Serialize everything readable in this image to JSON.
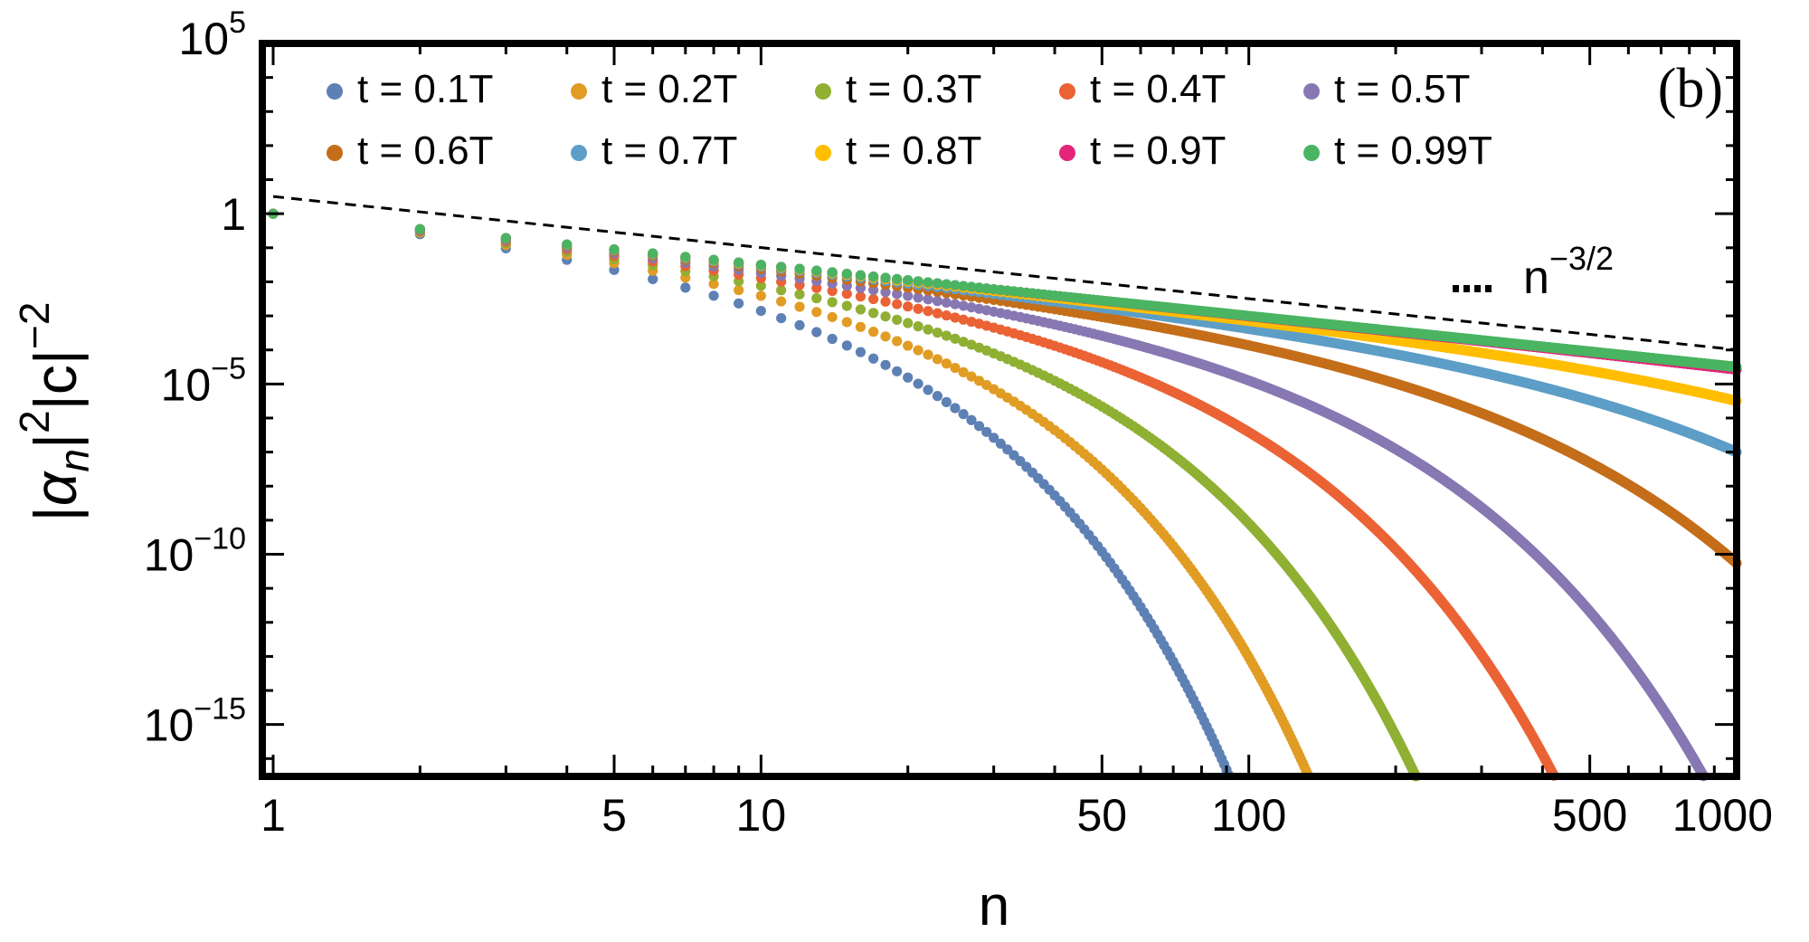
{
  "chart_data": {
    "type": "scatter",
    "title": "",
    "panel_label": "(b)",
    "xlabel": "n",
    "ylabel": "|αn|²|c|⁻²",
    "x_scale": "log",
    "y_scale": "log",
    "xlim": [
      0.95,
      1000
    ],
    "ylim": [
      3e-17,
      100000.0
    ],
    "x_ticks": [
      {
        "value": 1,
        "label": "1"
      },
      {
        "value": 5,
        "label": "5"
      },
      {
        "value": 10,
        "label": "10"
      },
      {
        "value": 50,
        "label": "50"
      },
      {
        "value": 100,
        "label": "100"
      },
      {
        "value": 500,
        "label": "500"
      },
      {
        "value": 1000,
        "label": "1000"
      }
    ],
    "y_ticks": [
      {
        "value": 100000,
        "base": "10",
        "exp": "5"
      },
      {
        "value": 1,
        "base": "1",
        "exp": ""
      },
      {
        "value": 1e-05,
        "base": "10",
        "exp": "−5"
      },
      {
        "value": 1e-10,
        "base": "10",
        "exp": "−10"
      },
      {
        "value": 1e-15,
        "base": "10",
        "exp": "−15"
      }
    ],
    "grid": false,
    "legend_position": "top-left",
    "series": [
      {
        "name": "t = 0.1T",
        "t": 0.1,
        "color": "#5e81b5"
      },
      {
        "name": "t = 0.2T",
        "t": 0.2,
        "color": "#e19c24"
      },
      {
        "name": "t = 0.3T",
        "t": 0.3,
        "color": "#8fb032"
      },
      {
        "name": "t = 0.4T",
        "t": 0.4,
        "color": "#eb6235"
      },
      {
        "name": "t = 0.5T",
        "t": 0.5,
        "color": "#8778b3"
      },
      {
        "name": "t = 0.6T",
        "t": 0.6,
        "color": "#c56e1a"
      },
      {
        "name": "t = 0.7T",
        "t": 0.7,
        "color": "#5d9ec7"
      },
      {
        "name": "t = 0.8T",
        "t": 0.8,
        "color": "#ffbf00"
      },
      {
        "name": "t = 0.9T",
        "t": 0.9,
        "color": "#e4257a"
      },
      {
        "name": "t = 0.99T",
        "t": 0.99,
        "color": "#4ab462"
      }
    ],
    "reference_line": {
      "label": "n",
      "label_exp": "−3/2",
      "exponent": -1.5,
      "y_at_n1": 3.2
    },
    "n_max": 1000
  }
}
